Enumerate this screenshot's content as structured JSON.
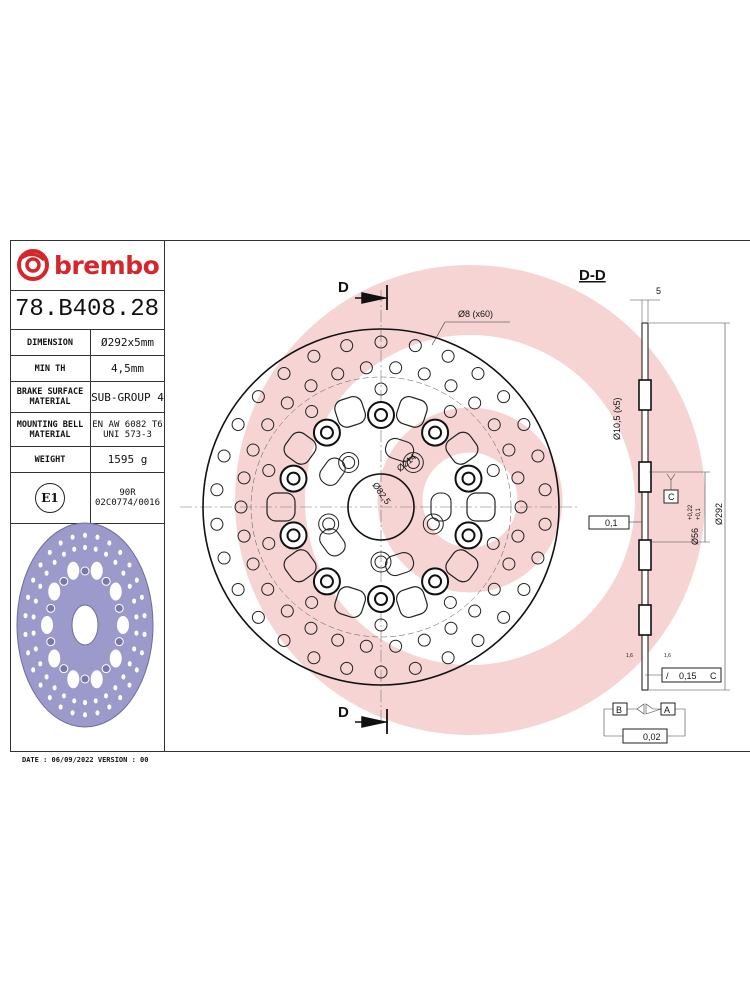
{
  "brand": {
    "name": "brembo",
    "color": "#d7262b"
  },
  "part_number": "78.B408.28",
  "specs": [
    {
      "label": "DIMENSION",
      "value": "Ø292x5mm"
    },
    {
      "label": "MIN TH",
      "value": "4,5mm"
    },
    {
      "label": "BRAKE SURFACE MATERIAL",
      "value": "SUB-GROUP 4"
    },
    {
      "label": "MOUNTING BELL MATERIAL",
      "value": "EN AW 6082 T6 UNI 573-3"
    },
    {
      "label": "WEIGHT",
      "value": "1595 g"
    }
  ],
  "homologation": {
    "mark": "E1",
    "line1": "90R",
    "line2": "02C0774/0016"
  },
  "footer": "DATE : 06/09/2022 VERSION : 00",
  "drawing": {
    "section_mark": "D",
    "section_title": "D-D",
    "holes_label": "Ø8 (x60)",
    "pcd_label": "Ø214",
    "hub_label": "Ø82,5",
    "thickness": "5",
    "bolt_hole": "Ø10,5 (x5)",
    "center_bore": "Ø56",
    "center_bore_tol_upper": "+0,22",
    "center_bore_tol_lower": "+0,1",
    "outer_diameter": "Ø292",
    "datum_c": "C",
    "flatness": "0,1",
    "roughness_left": "1,6",
    "roughness_right": "1,6",
    "runout": "0,15",
    "runout_datum": "C",
    "datum_b": "B",
    "datum_a": "A",
    "parallelism": "0,02"
  },
  "colors": {
    "disc_3d": "#9c9acb",
    "watermark": "#f6d4d4"
  }
}
